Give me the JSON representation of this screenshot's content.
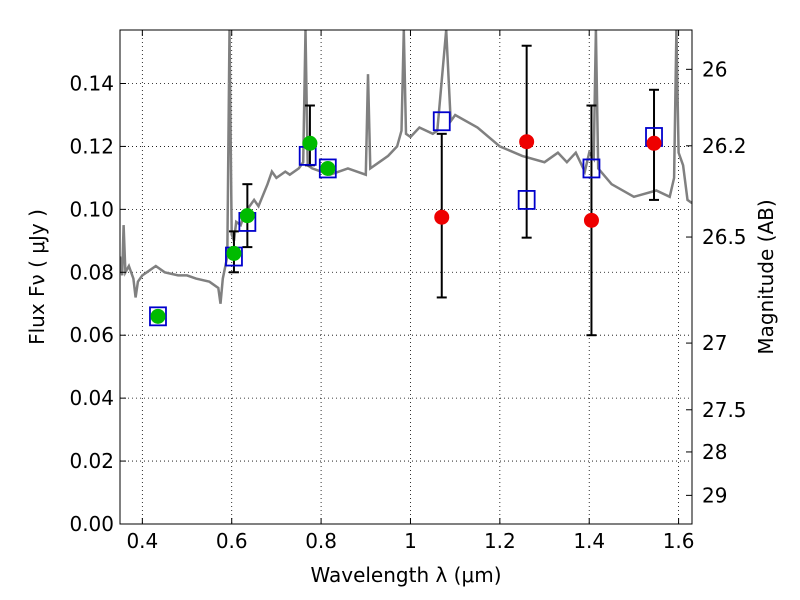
{
  "chart_data": {
    "type": "scatter",
    "xlabel": "Wavelength  λ (μm)",
    "ylabel": "Flux  Fν ( μJy )",
    "y2label": "Magnitude (AB)",
    "xlim": [
      0.35,
      1.63
    ],
    "ylim": [
      0.0,
      0.157
    ],
    "grid": "dotted",
    "x_ticks": [
      0.4,
      0.6,
      0.8,
      1.0,
      1.2,
      1.4,
      1.6
    ],
    "x_tick_labels": [
      "0.4",
      "0.6",
      "0.8",
      "1",
      "1.2",
      "1.4",
      "1.6"
    ],
    "y_ticks": [
      0.0,
      0.02,
      0.04,
      0.06,
      0.08,
      0.1,
      0.12,
      0.14
    ],
    "y_tick_labels": [
      "0.00",
      "0.02",
      "0.04",
      "0.06",
      "0.08",
      "0.10",
      "0.12",
      "0.14"
    ],
    "mag_ticks": [
      {
        "label": "26",
        "flux": 0.1445
      },
      {
        "label": "26.2",
        "flux": 0.1202
      },
      {
        "label": "26.5",
        "flux": 0.0912
      },
      {
        "label": "27",
        "flux": 0.0575
      },
      {
        "label": "27.5",
        "flux": 0.0363
      },
      {
        "label": "28",
        "flux": 0.0229
      },
      {
        "label": "29",
        "flux": 0.0091
      }
    ],
    "series": [
      {
        "kind": "model_spectrum",
        "color": "#808080",
        "points": [
          [
            0.35,
            0.085
          ],
          [
            0.355,
            0.079
          ],
          [
            0.358,
            0.095
          ],
          [
            0.362,
            0.08
          ],
          [
            0.37,
            0.082
          ],
          [
            0.38,
            0.078
          ],
          [
            0.385,
            0.072
          ],
          [
            0.39,
            0.077
          ],
          [
            0.4,
            0.079
          ],
          [
            0.41,
            0.08
          ],
          [
            0.43,
            0.082
          ],
          [
            0.45,
            0.08
          ],
          [
            0.48,
            0.079
          ],
          [
            0.5,
            0.079
          ],
          [
            0.52,
            0.078
          ],
          [
            0.55,
            0.077
          ],
          [
            0.57,
            0.075
          ],
          [
            0.575,
            0.07
          ],
          [
            0.58,
            0.078
          ],
          [
            0.59,
            0.085
          ],
          [
            0.595,
            0.157
          ],
          [
            0.6,
            0.092
          ],
          [
            0.605,
            0.09
          ],
          [
            0.61,
            0.096
          ],
          [
            0.62,
            0.095
          ],
          [
            0.63,
            0.099
          ],
          [
            0.65,
            0.103
          ],
          [
            0.66,
            0.101
          ],
          [
            0.68,
            0.108
          ],
          [
            0.69,
            0.112
          ],
          [
            0.7,
            0.11
          ],
          [
            0.72,
            0.112
          ],
          [
            0.73,
            0.111
          ],
          [
            0.75,
            0.113
          ],
          [
            0.76,
            0.115
          ],
          [
            0.765,
            0.157
          ],
          [
            0.77,
            0.114
          ],
          [
            0.78,
            0.113
          ],
          [
            0.8,
            0.112
          ],
          [
            0.82,
            0.111
          ],
          [
            0.84,
            0.112
          ],
          [
            0.86,
            0.113
          ],
          [
            0.88,
            0.112
          ],
          [
            0.9,
            0.111
          ],
          [
            0.905,
            0.143
          ],
          [
            0.91,
            0.113
          ],
          [
            0.93,
            0.115
          ],
          [
            0.95,
            0.117
          ],
          [
            0.97,
            0.12
          ],
          [
            0.98,
            0.125
          ],
          [
            0.985,
            0.157
          ],
          [
            0.99,
            0.124
          ],
          [
            1.0,
            0.123
          ],
          [
            1.02,
            0.126
          ],
          [
            1.05,
            0.124
          ],
          [
            1.06,
            0.125
          ],
          [
            1.08,
            0.157
          ],
          [
            1.09,
            0.128
          ],
          [
            1.1,
            0.13
          ],
          [
            1.15,
            0.126
          ],
          [
            1.2,
            0.12
          ],
          [
            1.25,
            0.117
          ],
          [
            1.3,
            0.115
          ],
          [
            1.33,
            0.118
          ],
          [
            1.35,
            0.115
          ],
          [
            1.37,
            0.118
          ],
          [
            1.39,
            0.112
          ],
          [
            1.4,
            0.118
          ],
          [
            1.41,
            0.116
          ],
          [
            1.415,
            0.157
          ],
          [
            1.42,
            0.113
          ],
          [
            1.45,
            0.108
          ],
          [
            1.5,
            0.104
          ],
          [
            1.55,
            0.106
          ],
          [
            1.58,
            0.104
          ],
          [
            1.59,
            0.11
          ],
          [
            1.595,
            0.157
          ],
          [
            1.6,
            0.118
          ],
          [
            1.61,
            0.114
          ],
          [
            1.62,
            0.103
          ],
          [
            1.63,
            0.102
          ]
        ]
      },
      {
        "kind": "model_photometry",
        "marker": "open-square",
        "color": "#0000cc",
        "points": [
          [
            0.435,
            0.066
          ],
          [
            0.605,
            0.085
          ],
          [
            0.635,
            0.096
          ],
          [
            0.77,
            0.117
          ],
          [
            0.815,
            0.113
          ],
          [
            1.07,
            0.128
          ],
          [
            1.26,
            0.103
          ],
          [
            1.405,
            0.113
          ],
          [
            1.545,
            0.123
          ]
        ]
      },
      {
        "kind": "observed_detections",
        "marker": "filled-circle",
        "color": "#00bb00",
        "points": [
          [
            0.435,
            0.066
          ],
          [
            0.605,
            0.086
          ],
          [
            0.635,
            0.098
          ],
          [
            0.775,
            0.121
          ],
          [
            0.815,
            0.113
          ]
        ]
      },
      {
        "kind": "observed_low_significance",
        "marker": "filled-circle",
        "color": "#ee0000",
        "points": [
          [
            1.07,
            0.0975
          ],
          [
            1.26,
            0.1215
          ],
          [
            1.405,
            0.0965
          ],
          [
            1.545,
            0.121
          ]
        ]
      }
    ],
    "error_bars": [
      {
        "x": 0.605,
        "low": 0.08,
        "high": 0.093
      },
      {
        "x": 0.635,
        "low": 0.088,
        "high": 0.108
      },
      {
        "x": 0.775,
        "low": 0.114,
        "high": 0.133
      },
      {
        "x": 1.07,
        "low": 0.072,
        "high": 0.124
      },
      {
        "x": 1.26,
        "low": 0.091,
        "high": 0.152
      },
      {
        "x": 1.405,
        "low": 0.06,
        "high": 0.133
      },
      {
        "x": 1.545,
        "low": 0.103,
        "high": 0.138
      }
    ]
  }
}
